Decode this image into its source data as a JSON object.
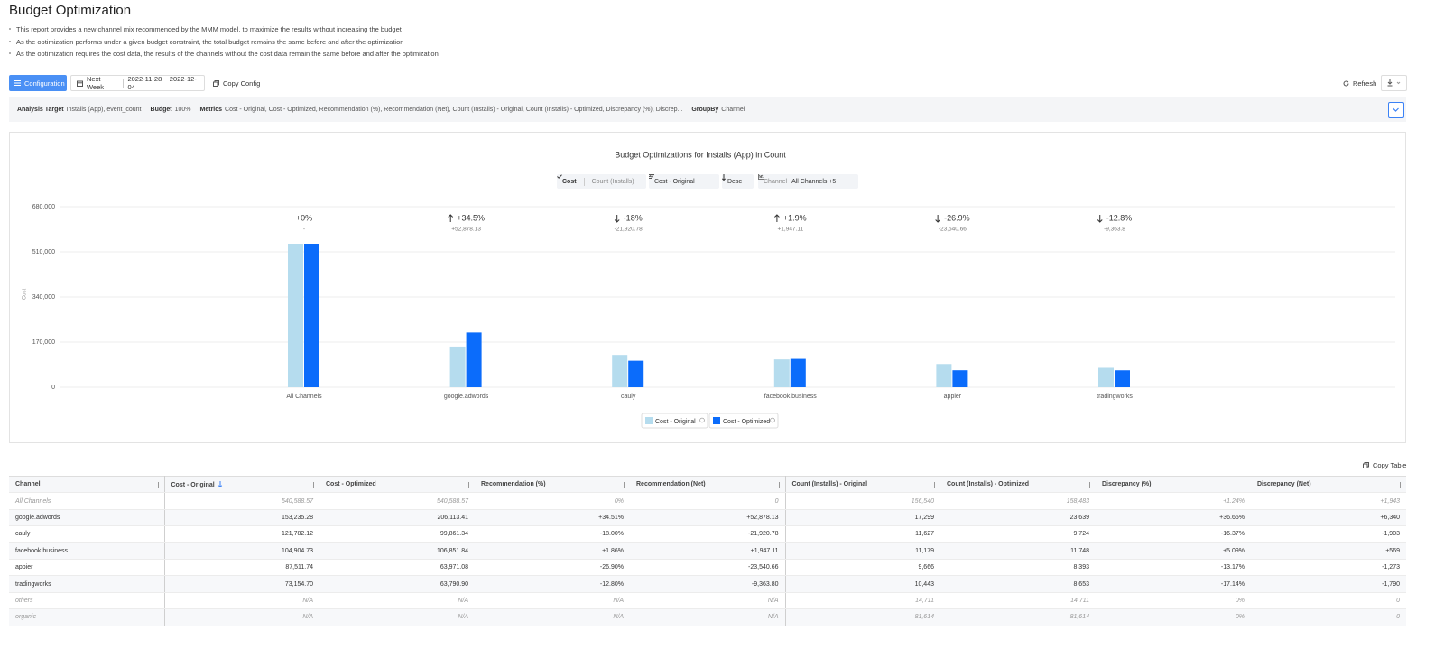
{
  "header": {
    "title": "Budget Optimization"
  },
  "notes": [
    "This report provides a new channel mix recommended by the MMM model, to maximize the results without increasing the budget",
    "As the optimization performs under a given budget constraint, the total budget remains the same before and after the optimization",
    "As the optimization requires the cost data, the results of the channels without the cost data remain the same before and after the optimization"
  ],
  "toolbar": {
    "configuration": "Configuration",
    "period": "Next Week",
    "date_range": "2022-11-28 ~ 2022-12-04",
    "copy_config": "Copy Config",
    "refresh": "Refresh"
  },
  "summary": [
    {
      "label": "Analysis Target",
      "value": "Installs (App), event_count"
    },
    {
      "label": "Budget",
      "value": "100%"
    },
    {
      "label": "Metrics",
      "value": "Cost - Original, Cost - Optimized, Recommendation (%), Recommendation (Net), Count (Installs) - Original, Count (Installs) - Optimized, Discrepancy (%), Discrep..."
    },
    {
      "label": "GroupBy",
      "value": "Channel"
    }
  ],
  "chart_data": {
    "type": "bar",
    "title": "Budget Optimizations for Installs (App) in Count",
    "controls": {
      "metric_active": "Cost",
      "metric_other": "Count (Installs)",
      "sort_by": "Cost - Original",
      "sort_order": "Desc",
      "filter_label": "Channel",
      "filter_value": "All Channels +5"
    },
    "y_label": "Cost",
    "categories": [
      "All Channels",
      "google.adwords",
      "cauly",
      "facebook.business",
      "appier",
      "tradingworks"
    ],
    "series": [
      {
        "name": "Cost - Original",
        "color": "#b5dcee",
        "values": [
          540588.57,
          153235.28,
          121782.12,
          104904.73,
          87511.74,
          73154.7
        ]
      },
      {
        "name": "Cost - Optimized",
        "color": "#0b6cfb",
        "values": [
          540588.57,
          206113.41,
          99861.34,
          106851.84,
          63971.08,
          63790.9
        ]
      }
    ],
    "annotations": [
      {
        "change": "+0%",
        "net": "-"
      },
      {
        "change": "+34.5%",
        "net": "+52,878.13"
      },
      {
        "change": "-18%",
        "net": "-21,920.78"
      },
      {
        "change": "+1.9%",
        "net": "+1,947.11"
      },
      {
        "change": "-26.9%",
        "net": "-23,540.66"
      },
      {
        "change": "-12.8%",
        "net": "-9,363.8"
      }
    ],
    "ylim": [
      0,
      680000
    ],
    "yticks": [
      0,
      {
        "value": 170000,
        "label": "170,000"
      },
      {
        "value": 340000,
        "label": "340,000"
      },
      {
        "value": 510000,
        "label": "510,000"
      },
      {
        "value": 680000,
        "label": "680,000"
      }
    ],
    "grid": true
  },
  "copy_table": "Copy Table",
  "table": {
    "columns": [
      "Channel",
      "Cost - Original",
      "Cost - Optimized",
      "Recommendation (%)",
      "Recommendation (Net)",
      "Count (Installs) - Original",
      "Count (Installs) - Optimized",
      "Discrepancy (%)",
      "Discrepancy (Net)"
    ],
    "rows": [
      [
        "All Channels",
        "540,588.57",
        "540,588.57",
        "0%",
        "0",
        "156,540",
        "158,483",
        "+1.24%",
        "+1,943"
      ],
      [
        "google.adwords",
        "153,235.28",
        "206,113.41",
        "+34.51%",
        "+52,878.13",
        "17,299",
        "23,639",
        "+36.65%",
        "+6,340"
      ],
      [
        "cauly",
        "121,782.12",
        "99,861.34",
        "-18.00%",
        "-21,920.78",
        "11,627",
        "9,724",
        "-16.37%",
        "-1,903"
      ],
      [
        "facebook.business",
        "104,904.73",
        "106,851.84",
        "+1.86%",
        "+1,947.11",
        "11,179",
        "11,748",
        "+5.09%",
        "+569"
      ],
      [
        "appier",
        "87,511.74",
        "63,971.08",
        "-26.90%",
        "-23,540.66",
        "9,666",
        "8,393",
        "-13.17%",
        "-1,273"
      ],
      [
        "tradingworks",
        "73,154.70",
        "63,790.90",
        "-12.80%",
        "-9,363.80",
        "10,443",
        "8,653",
        "-17.14%",
        "-1,790"
      ],
      [
        "others",
        "N/A",
        "N/A",
        "N/A",
        "N/A",
        "14,711",
        "14,711",
        "0%",
        "0"
      ],
      [
        "organic",
        "N/A",
        "N/A",
        "N/A",
        "N/A",
        "81,614",
        "81,614",
        "0%",
        "0"
      ]
    ]
  }
}
